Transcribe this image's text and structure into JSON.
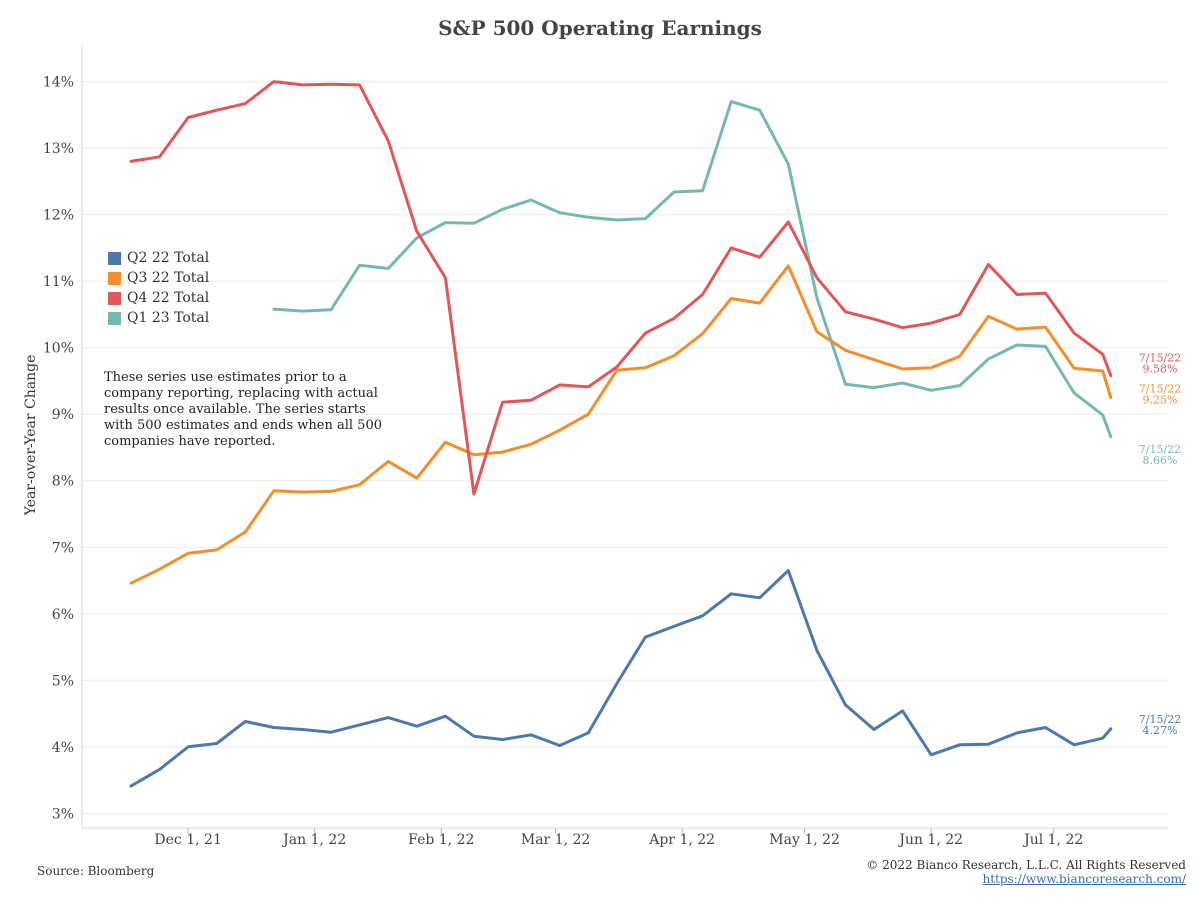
{
  "page": {
    "title": "S&P 500 Operating Earnings",
    "source": "Source: Bloomberg",
    "copyright": "© 2022 Bianco Research, L.L.C. All Rights Reserved",
    "url": "https://www.biancoresearch.com/",
    "note_lines": [
      "These series use estimates prior to a",
      "company reporting, replacing with actual",
      "results once available. The series starts",
      "with 500 estimates and ends when all 500",
      "companies have reported."
    ]
  },
  "chart_data": {
    "type": "line",
    "title": "S&P 500 Operating Earnings",
    "ylabel": "Year-over-Year Change",
    "xlabel": "",
    "ylim": [
      2.9,
      14.4
    ],
    "yticks": [
      3,
      4,
      5,
      6,
      7,
      8,
      9,
      10,
      11,
      12,
      13,
      14
    ],
    "ytick_labels": [
      "3%",
      "4%",
      "5%",
      "6%",
      "7%",
      "8%",
      "9%",
      "10%",
      "11%",
      "12%",
      "13%",
      "14%"
    ],
    "xlim": [
      "2021-11-05",
      "2022-07-29"
    ],
    "xticks": [
      "2021-12-01",
      "2022-01-01",
      "2022-02-01",
      "2022-03-01",
      "2022-04-01",
      "2022-05-01",
      "2022-06-01",
      "2022-07-01"
    ],
    "xtick_labels": [
      "Dec 1, 21",
      "Jan 1, 22",
      "Feb 1, 22",
      "Mar 1, 22",
      "Apr 1, 22",
      "May 1, 22",
      "Jun 1, 22",
      "Jul 1, 22"
    ],
    "grid": "horizontal",
    "legend_position": "left",
    "dates": [
      "2021-11-17",
      "2021-11-24",
      "2021-12-01",
      "2021-12-08",
      "2021-12-15",
      "2021-12-22",
      "2021-12-29",
      "2022-01-05",
      "2022-01-12",
      "2022-01-19",
      "2022-01-26",
      "2022-02-02",
      "2022-02-09",
      "2022-02-16",
      "2022-02-23",
      "2022-03-02",
      "2022-03-09",
      "2022-03-16",
      "2022-03-23",
      "2022-03-30",
      "2022-04-06",
      "2022-04-13",
      "2022-04-20",
      "2022-04-27",
      "2022-05-04",
      "2022-05-11",
      "2022-05-18",
      "2022-05-25",
      "2022-06-01",
      "2022-06-08",
      "2022-06-15",
      "2022-06-22",
      "2022-06-29",
      "2022-07-06",
      "2022-07-13",
      "2022-07-15"
    ],
    "series": [
      {
        "name": "Q2 22 Total",
        "color": "#4e79a7",
        "values": [
          3.41,
          3.66,
          4.0,
          4.05,
          4.38,
          4.29,
          4.26,
          4.22,
          4.33,
          4.44,
          4.31,
          4.46,
          4.16,
          4.11,
          4.18,
          4.02,
          4.21,
          4.95,
          5.65,
          5.81,
          5.97,
          6.3,
          6.24,
          6.65,
          5.45,
          4.63,
          4.26,
          4.54,
          3.88,
          4.03,
          4.04,
          4.21,
          4.29,
          4.03,
          4.13,
          4.27
        ],
        "end_label_date": "7/15/22",
        "end_label_value": "4.27%"
      },
      {
        "name": "Q3 22 Total",
        "color": "#f28e2b",
        "values": [
          6.46,
          6.67,
          6.91,
          6.96,
          7.23,
          7.85,
          7.83,
          7.84,
          7.94,
          8.29,
          8.04,
          8.58,
          8.39,
          8.43,
          8.55,
          8.76,
          9.0,
          9.66,
          9.7,
          9.88,
          10.21,
          10.74,
          10.67,
          11.23,
          10.24,
          9.96,
          9.82,
          9.68,
          9.7,
          9.87,
          10.47,
          10.28,
          10.31,
          9.69,
          9.65,
          9.25
        ],
        "end_label_date": "7/15/22",
        "end_label_value": "9.25%"
      },
      {
        "name": "Q4 22 Total",
        "color": "#e15759",
        "values": [
          12.8,
          12.87,
          13.46,
          13.57,
          13.67,
          14.0,
          13.95,
          13.96,
          13.95,
          13.11,
          11.75,
          11.05,
          7.8,
          9.18,
          9.21,
          9.44,
          9.41,
          9.71,
          10.22,
          10.44,
          10.8,
          11.5,
          11.36,
          11.89,
          11.05,
          10.54,
          10.43,
          10.3,
          10.37,
          10.5,
          11.25,
          10.8,
          10.82,
          10.22,
          9.9,
          9.58
        ],
        "end_label_date": "7/15/22",
        "end_label_value": "9.58%"
      },
      {
        "name": "Q1 23 Total",
        "color": "#76b7b2",
        "values": [
          null,
          null,
          null,
          null,
          null,
          10.58,
          10.55,
          10.57,
          11.24,
          11.19,
          11.65,
          11.88,
          11.87,
          12.08,
          12.22,
          12.03,
          11.96,
          11.92,
          11.94,
          12.34,
          12.36,
          13.7,
          13.57,
          12.76,
          10.75,
          9.45,
          9.4,
          9.47,
          9.36,
          9.43,
          9.83,
          10.04,
          10.02,
          9.32,
          8.99,
          8.66
        ],
        "end_label_date": "7/15/22",
        "end_label_value": "8.66%"
      }
    ]
  }
}
